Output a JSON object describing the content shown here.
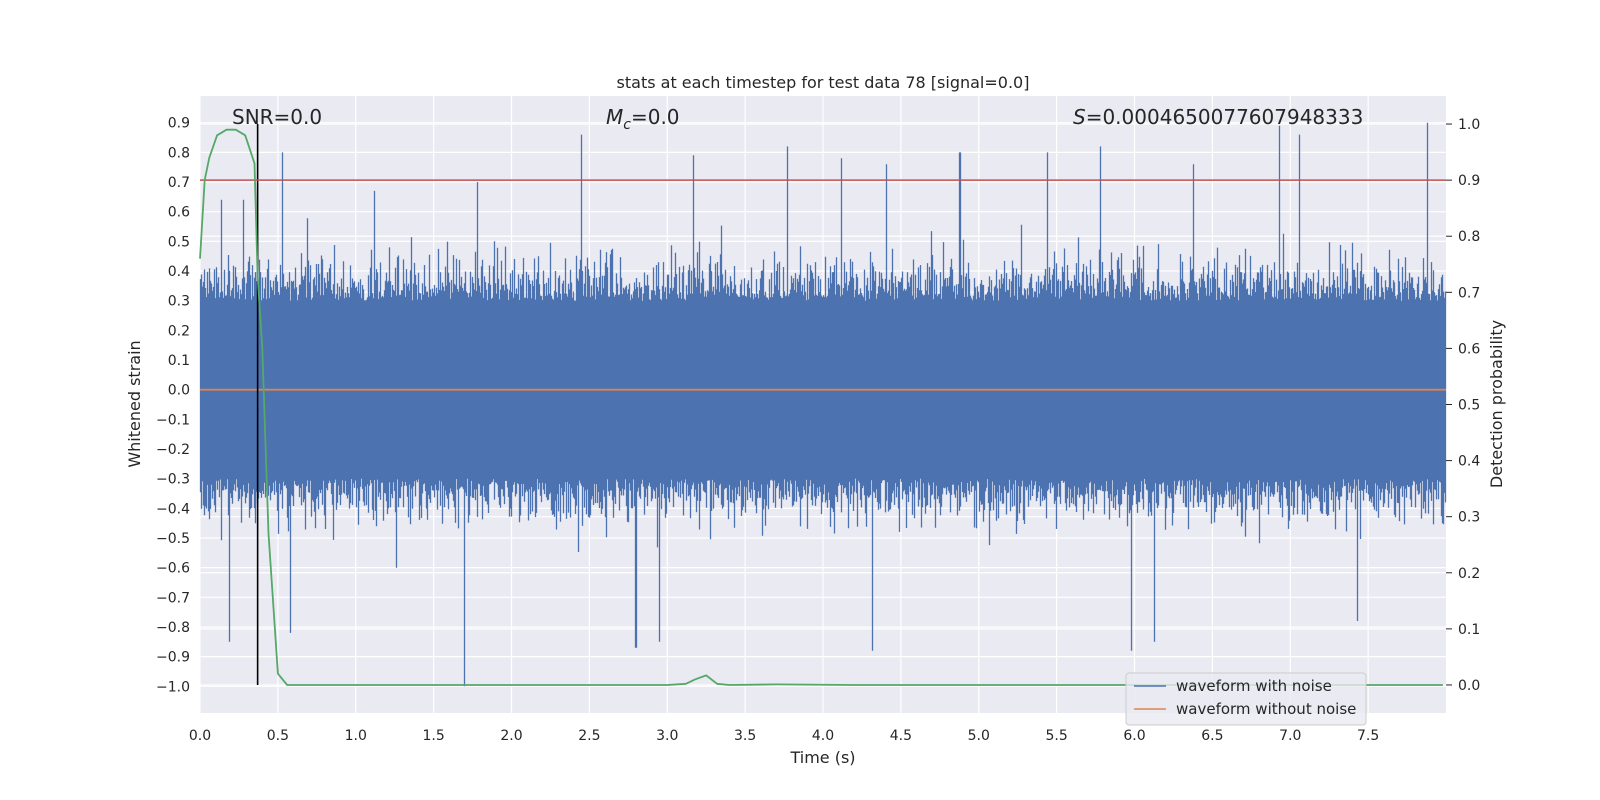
{
  "chart_data": {
    "type": "line",
    "title": "stats at each timestep for test data 78 [signal=0.0]",
    "xlabel": "Time (s)",
    "ylabel_left": "Whitened strain",
    "ylabel_right": "Detection probability",
    "xlim": [
      0.0,
      8.0
    ],
    "ylim_left": [
      -1.09,
      0.99
    ],
    "ylim_right": [
      -0.05,
      1.05
    ],
    "xticks": [
      "0.0",
      "0.5",
      "1.0",
      "1.5",
      "2.0",
      "2.5",
      "3.0",
      "3.5",
      "4.0",
      "4.5",
      "5.0",
      "5.5",
      "6.0",
      "6.5",
      "7.0",
      "7.5"
    ],
    "yticks_left": [
      "0.9",
      "0.8",
      "0.7",
      "0.6",
      "0.5",
      "0.4",
      "0.3",
      "0.2",
      "0.1",
      "0.0",
      "−0.1",
      "−0.2",
      "−0.3",
      "−0.4",
      "−0.5",
      "−0.6",
      "−0.7",
      "−0.8",
      "−0.9",
      "−1.0"
    ],
    "yticks_right": [
      "1.0",
      "0.9",
      "0.8",
      "0.7",
      "0.6",
      "0.5",
      "0.4",
      "0.3",
      "0.2",
      "0.1",
      "0.0"
    ],
    "grid": true,
    "legend_position": "lower-right",
    "annotations": {
      "snr": "SNR=0.0",
      "mc_symbol": "M",
      "mc_subscript": "c",
      "mc_value": "=0.0",
      "s_symbol": "S",
      "s_value": "=0.0004650077607948333"
    },
    "vertical_line_x": 0.37,
    "threshold_probability": 0.9,
    "series": [
      {
        "name": "waveform with noise",
        "color": "#4c72b0",
        "axis": "left",
        "description_values": "noise",
        "peaks": [
          [
            0.14,
            0.64
          ],
          [
            0.28,
            0.64
          ],
          [
            0.53,
            0.8
          ],
          [
            1.12,
            0.67
          ],
          [
            1.78,
            0.7
          ],
          [
            2.45,
            0.86
          ],
          [
            3.17,
            0.79
          ],
          [
            3.77,
            0.82
          ],
          [
            4.12,
            0.78
          ],
          [
            4.41,
            0.76
          ],
          [
            4.88,
            0.8
          ],
          [
            5.44,
            0.8
          ],
          [
            5.78,
            0.82
          ],
          [
            6.38,
            0.76
          ],
          [
            6.93,
            0.89
          ],
          [
            7.06,
            0.86
          ],
          [
            7.88,
            0.9
          ]
        ],
        "troughs": [
          [
            0.19,
            -0.85
          ],
          [
            0.58,
            -0.82
          ],
          [
            1.7,
            -1.0
          ],
          [
            2.8,
            -0.87
          ],
          [
            2.95,
            -0.85
          ],
          [
            4.32,
            -0.88
          ],
          [
            5.98,
            -0.88
          ],
          [
            6.13,
            -0.85
          ],
          [
            7.43,
            -0.78
          ]
        ]
      },
      {
        "name": "waveform without noise",
        "color": "#dd8452",
        "axis": "left",
        "x": [
          0.0,
          8.0
        ],
        "y": [
          0.0,
          0.0
        ]
      },
      {
        "name": "detection probability",
        "color": "#55a868",
        "axis": "right",
        "x": [
          0.0,
          0.03,
          0.06,
          0.11,
          0.17,
          0.23,
          0.29,
          0.35,
          0.37,
          0.4,
          0.44,
          0.5,
          0.56,
          1.0,
          1.5,
          2.0,
          2.5,
          3.0,
          3.12,
          3.18,
          3.25,
          3.32,
          3.4,
          3.7,
          4.2,
          5.0,
          6.0,
          7.0,
          7.98
        ],
        "y": [
          0.76,
          0.9,
          0.94,
          0.98,
          0.99,
          0.99,
          0.98,
          0.93,
          0.73,
          0.6,
          0.27,
          0.02,
          0.0,
          0.0,
          0.0,
          0.0,
          0.0,
          0.0,
          0.002,
          0.01,
          0.017,
          0.002,
          0.0,
          0.001,
          0.0,
          0.0,
          0.0,
          0.0,
          0.0
        ]
      },
      {
        "name": "threshold",
        "color": "#c44e52",
        "axis": "right",
        "x": [
          0.0,
          8.0
        ],
        "y": [
          0.9,
          0.9
        ]
      }
    ]
  }
}
